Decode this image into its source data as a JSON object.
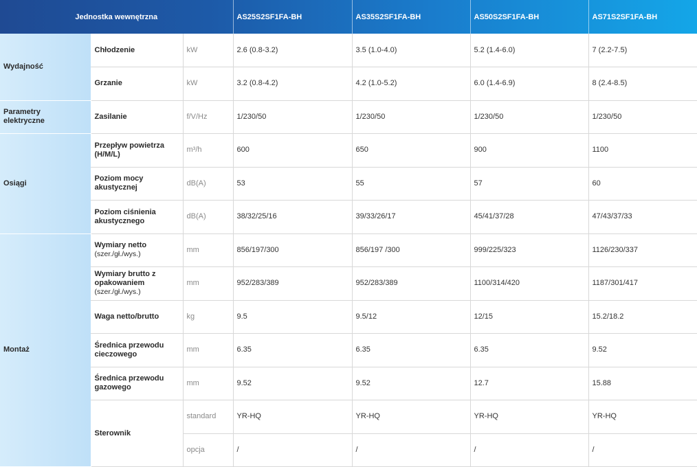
{
  "header": {
    "title": "Jednostka wewnętrzna",
    "models": [
      "AS25S2SF1FA-BH",
      "AS35S2SF1FA-BH",
      "AS50S2SF1FA-BH",
      "AS71S2SF1FA-BH"
    ]
  },
  "categories": {
    "wydajnosc": "Wydajność",
    "parametry_line1": "Parametry",
    "parametry_line2": "elektryczne",
    "osiagi": "Osiągi",
    "montaz": "Montaż"
  },
  "rows": [
    {
      "name": "Chłodzenie",
      "unit": "kW",
      "values": [
        "2.6 (0.8-3.2)",
        "3.5 (1.0-4.0)",
        "5.2 (1.4-6.0)",
        "7 (2.2-7.5)"
      ]
    },
    {
      "name": "Grzanie",
      "unit": "kW",
      "values": [
        "3.2 (0.8-4.2)",
        "4.2 (1.0-5.2)",
        "6.0 (1.4-6.9)",
        "8 (2.4-8.5)"
      ]
    },
    {
      "name": "Zasilanie",
      "unit": "f/V/Hz",
      "values": [
        "1/230/50",
        "1/230/50",
        "1/230/50",
        "1/230/50"
      ]
    },
    {
      "name": "Przepływ powietrza (H/M/L)",
      "unit": "m³/h",
      "values": [
        "600",
        "650",
        "900",
        "1100"
      ]
    },
    {
      "name": "Poziom mocy akustycznej",
      "unit": "dB(A)",
      "values": [
        "53",
        "55",
        "57",
        "60"
      ]
    },
    {
      "name": "Poziom ciśnienia akustycznego",
      "unit": "dB(A)",
      "values": [
        "38/32/25/16",
        "39/33/26/17",
        "45/41/37/28",
        "47/43/37/33"
      ]
    },
    {
      "name_main": "Wymiary netto",
      "name_sub": "(szer./gł./wys.)",
      "unit": "mm",
      "values": [
        "856/197/300",
        "856/197 /300",
        "999/225/323",
        "1126/230/337"
      ]
    },
    {
      "name_main": "Wymiary brutto z opakowaniem",
      "name_sub": "(szer./gł./wys.)",
      "unit": "mm",
      "values": [
        "952/283/389",
        "952/283/389",
        "1100/314/420",
        "1187/301/417"
      ]
    },
    {
      "name": "Waga netto/brutto",
      "unit": "kg",
      "values": [
        "9.5",
        "9.5/12",
        "12/15",
        "15.2/18.2"
      ]
    },
    {
      "name": "Średnica przewodu cieczowego",
      "unit": "mm",
      "values": [
        "6.35",
        "6.35",
        "6.35",
        "9.52"
      ]
    },
    {
      "name": "Średnica przewodu gazowego",
      "unit": "mm",
      "values": [
        "9.52",
        "9.52",
        "12.7",
        "15.88"
      ]
    },
    {
      "name": "Sterownik",
      "unit": "standard",
      "values": [
        "YR-HQ",
        "YR-HQ",
        "YR-HQ",
        "YR-HQ"
      ]
    },
    {
      "unit": "opcja",
      "values": [
        "/",
        "/",
        "/",
        "/"
      ]
    }
  ]
}
